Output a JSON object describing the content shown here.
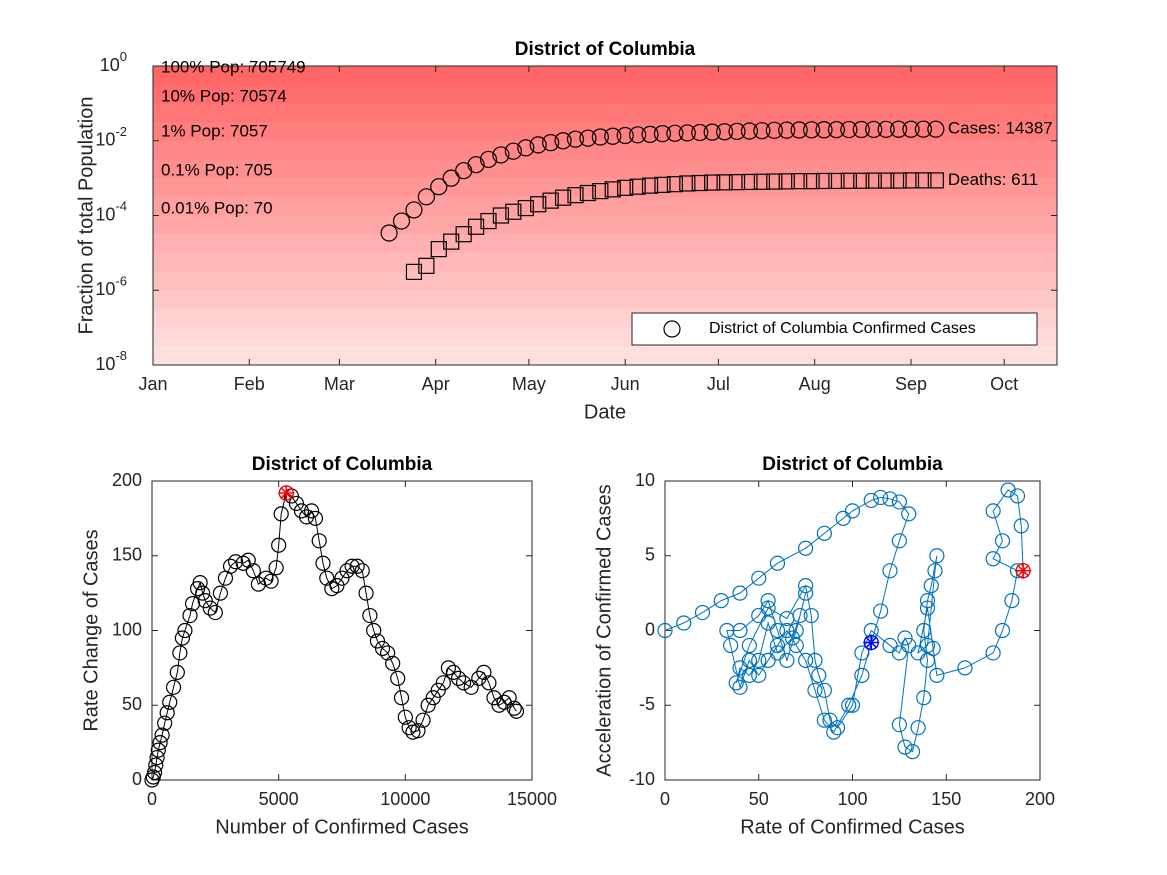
{
  "chart_data": [
    {
      "type": "scatter",
      "title": "District of Columbia",
      "xlabel": "Date",
      "ylabel": "Fraction of total Population",
      "yscale": "log",
      "legend": "lower right",
      "xlim": [
        0,
        291
      ],
      "xticks": [
        {
          "value": 0,
          "label": "Jan"
        },
        {
          "value": 31,
          "label": "Feb"
        },
        {
          "value": 60,
          "label": "Mar"
        },
        {
          "value": 91,
          "label": "Apr"
        },
        {
          "value": 121,
          "label": "May"
        },
        {
          "value": 152,
          "label": "Jun"
        },
        {
          "value": 182,
          "label": "Jul"
        },
        {
          "value": 213,
          "label": "Aug"
        },
        {
          "value": 244,
          "label": "Sep"
        },
        {
          "value": 274,
          "label": "Oct"
        }
      ],
      "ylim": [
        1e-08,
        1
      ],
      "yticks": [
        {
          "value": 1e-08,
          "label": "10",
          "exponent": "-8"
        },
        {
          "value": 1e-06,
          "label": "10",
          "exponent": "-6"
        },
        {
          "value": 0.0001,
          "label": "10",
          "exponent": "-4"
        },
        {
          "value": 0.01,
          "label": "10",
          "exponent": "-2"
        },
        {
          "value": 1,
          "label": "10",
          "exponent": "0"
        }
      ],
      "annotations": [
        "100% Pop: 705749",
        "10% Pop: 70574",
        "1% Pop: 7057",
        "0.1% Pop: 705",
        "0.01% Pop: 70"
      ],
      "series": [
        {
          "name": "District of Columbia Confirmed Cases",
          "marker": "circle",
          "color": "#000000",
          "end_label": "Cases: 14387",
          "x": [
            76,
            80,
            84,
            88,
            92,
            96,
            100,
            104,
            108,
            112,
            116,
            120,
            124,
            128,
            132,
            136,
            140,
            144,
            148,
            152,
            156,
            160,
            164,
            168,
            172,
            176,
            180,
            184,
            188,
            192,
            196,
            200,
            204,
            208,
            212,
            216,
            220,
            224,
            228,
            232,
            236,
            240,
            244,
            248,
            252
          ],
          "values": [
            3.4e-05,
            7.1e-05,
            0.000141,
            0.000316,
            0.00059,
            0.001,
            0.00158,
            0.00229,
            0.00316,
            0.00417,
            0.00525,
            0.00646,
            0.00776,
            0.0089,
            0.01,
            0.011,
            0.0117,
            0.0126,
            0.0132,
            0.0138,
            0.0144,
            0.0148,
            0.0155,
            0.0158,
            0.0162,
            0.0166,
            0.017,
            0.0174,
            0.0178,
            0.0182,
            0.0186,
            0.019,
            0.0192,
            0.0194,
            0.0196,
            0.0197,
            0.0198,
            0.0199,
            0.02,
            0.0201,
            0.0202,
            0.0203,
            0.0203,
            0.0204,
            0.0204
          ]
        },
        {
          "marker": "square",
          "color": "#000000",
          "end_label": "Deaths: 611",
          "x": [
            84,
            88,
            92,
            96,
            100,
            104,
            108,
            112,
            116,
            120,
            124,
            128,
            132,
            136,
            140,
            144,
            148,
            152,
            156,
            160,
            164,
            168,
            172,
            176,
            180,
            184,
            188,
            192,
            196,
            200,
            204,
            208,
            212,
            216,
            220,
            224,
            228,
            232,
            236,
            240,
            244,
            248,
            252
          ],
          "values": [
            3.1e-06,
            4.5e-06,
            1.26e-05,
            2e-05,
            3.16e-05,
            5e-05,
            7.1e-05,
            0.0001,
            0.000126,
            0.000158,
            0.0002,
            0.00025,
            0.0003,
            0.00035,
            0.0004,
            0.00045,
            0.0005,
            0.00055,
            0.00059,
            0.00063,
            0.00066,
            0.00069,
            0.00072,
            0.00074,
            0.00076,
            0.00077,
            0.00078,
            0.00079,
            0.0008,
            0.00081,
            0.00082,
            0.00083,
            0.00083,
            0.00084,
            0.00084,
            0.00085,
            0.00085,
            0.00086,
            0.00086,
            0.00086,
            0.00087,
            0.00087,
            0.00087
          ]
        }
      ]
    },
    {
      "type": "line",
      "title": "District of Columbia",
      "xlabel": "Number of Confirmed Cases",
      "ylabel": "Rate Change of Cases",
      "xlim": [
        0,
        15000
      ],
      "xticks": [
        0,
        5000,
        10000,
        15000
      ],
      "ylim": [
        0,
        200
      ],
      "yticks": [
        0,
        50,
        100,
        150,
        200
      ],
      "series": [
        {
          "marker": "circle",
          "color": "#000000",
          "x": [
            0,
            50,
            100,
            150,
            200,
            250,
            320,
            400,
            500,
            600,
            700,
            850,
            1000,
            1100,
            1200,
            1300,
            1500,
            1600,
            1800,
            1900,
            2000,
            2100,
            2300,
            2500,
            2700,
            2900,
            3100,
            3300,
            3600,
            3800,
            4000,
            4200,
            4500,
            4700,
            4900,
            5000,
            5100,
            5300,
            5500,
            5700,
            5900,
            6100,
            6300,
            6450,
            6600,
            6750,
            6900,
            7100,
            7300,
            7500,
            7700,
            7900,
            8100,
            8300,
            8450,
            8600,
            8750,
            8900,
            9100,
            9300,
            9500,
            9700,
            9850,
            10000,
            10150,
            10300,
            10500,
            10700,
            10900,
            11100,
            11300,
            11500,
            11700,
            11900,
            12100,
            12300,
            12600,
            12900,
            13100,
            13300,
            13500,
            13700,
            13900,
            14100,
            14300,
            14387
          ],
          "values": [
            0,
            2,
            5,
            10,
            15,
            20,
            25,
            30,
            38,
            45,
            52,
            62,
            72,
            85,
            95,
            100,
            110,
            118,
            128,
            132,
            125,
            120,
            115,
            112,
            125,
            135,
            143,
            146,
            145,
            147,
            140,
            131,
            135,
            133,
            142,
            157,
            178,
            192,
            190,
            185,
            180,
            176,
            180,
            175,
            160,
            145,
            135,
            128,
            130,
            135,
            140,
            143,
            143,
            140,
            125,
            110,
            100,
            93,
            88,
            85,
            78,
            68,
            55,
            42,
            35,
            32,
            33,
            40,
            50,
            55,
            60,
            65,
            75,
            72,
            68,
            65,
            62,
            68,
            72,
            65,
            55,
            50,
            52,
            55,
            48,
            46
          ]
        }
      ],
      "highlights": [
        {
          "x": 5300,
          "y": 192,
          "color": "#ff0000"
        }
      ]
    },
    {
      "type": "line",
      "title": "District of Columbia",
      "xlabel": "Rate of Confirmed Cases",
      "ylabel": "Acceleration of Confirmed Cases",
      "xlim": [
        0,
        200
      ],
      "xticks": [
        0,
        50,
        100,
        150,
        200
      ],
      "ylim": [
        -10,
        10
      ],
      "yticks": [
        -10,
        -5,
        0,
        5,
        10
      ],
      "series": [
        {
          "marker": "circle",
          "color": "#0072bd",
          "x": [
            0,
            10,
            20,
            30,
            40,
            50,
            60,
            75,
            85,
            95,
            100,
            110,
            115,
            120,
            125,
            130,
            125,
            120,
            115,
            110,
            105,
            98,
            90,
            85,
            80,
            75,
            70,
            65,
            60,
            55,
            50,
            45,
            40,
            35,
            33,
            40,
            50,
            55,
            60,
            65,
            70,
            75,
            72,
            68,
            60,
            55,
            50,
            45,
            40,
            38,
            45,
            55,
            65,
            75,
            78,
            80,
            82,
            85,
            88,
            92,
            100,
            105,
            110,
            120,
            125,
            128,
            130,
            125,
            128,
            132,
            135,
            138,
            140,
            138,
            140,
            142,
            145,
            144,
            140,
            135,
            140,
            143,
            145,
            160,
            175,
            180,
            185,
            188,
            175,
            180,
            175,
            183,
            188,
            190,
            191
          ],
          "values": [
            0,
            0.5,
            1.2,
            2,
            2.5,
            3.5,
            4.5,
            5.5,
            6.5,
            7.5,
            8,
            8.7,
            8.9,
            8.8,
            8.6,
            7.8,
            6,
            4,
            1.3,
            -0.8,
            -3,
            -5,
            -6.8,
            -6,
            -4,
            -2,
            -1,
            0,
            -1,
            -2,
            -3,
            -2,
            -3.8,
            -1,
            0,
            0,
            1,
            2,
            0,
            -2,
            0,
            2.5,
            1,
            -0.5,
            -1.5,
            0.5,
            -2,
            -3,
            -2.5,
            -3.5,
            -1,
            1.5,
            0.8,
            3,
            1,
            -2,
            -3,
            -4,
            -6,
            -6.5,
            -5,
            -1.5,
            0,
            -1,
            -1.5,
            -0.5,
            -1,
            -6.3,
            -7.8,
            -8.1,
            -6.5,
            -4.5,
            -2,
            0,
            2,
            3,
            5,
            4,
            -1,
            -1.5,
            1.5,
            -1.2,
            -3,
            -2.5,
            -1.5,
            0,
            2,
            4,
            4.8,
            6,
            8,
            9.4,
            9,
            7,
            4
          ]
        }
      ],
      "highlights": [
        {
          "x": 110,
          "y": -0.8,
          "color": "#0000ff"
        },
        {
          "x": 191,
          "y": 4,
          "color": "#ff0000"
        }
      ]
    }
  ]
}
